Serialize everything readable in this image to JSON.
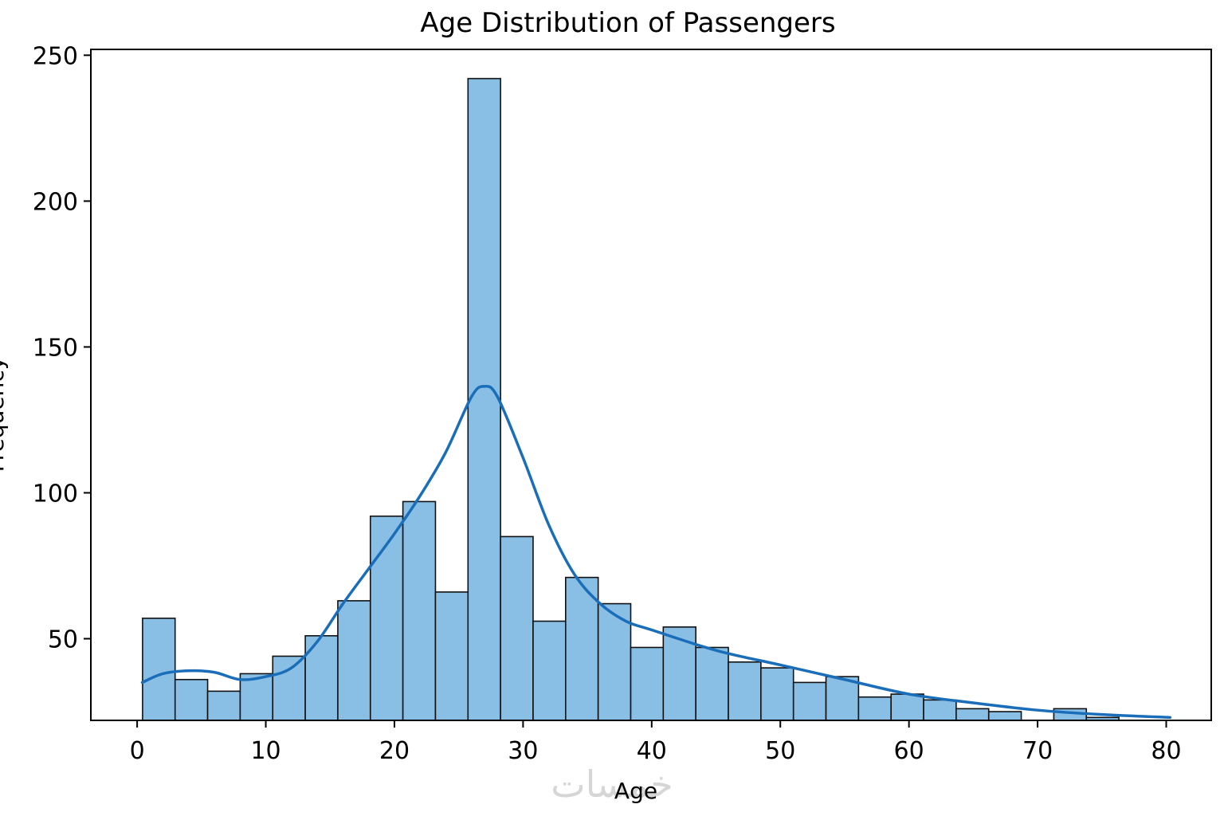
{
  "chart_data": {
    "type": "bar",
    "title": "Age Distribution of Passengers",
    "xlabel": "Age",
    "ylabel": "Frequency",
    "xlim": [
      -3.6,
      83.5
    ],
    "ylim": [
      22,
      252
    ],
    "xticks": [
      0,
      10,
      20,
      30,
      40,
      50,
      60,
      70,
      80
    ],
    "yticks": [
      50,
      100,
      150,
      200,
      250
    ],
    "bin_edges": [
      0.42,
      2.95,
      5.48,
      8.01,
      10.54,
      13.07,
      15.6,
      18.13,
      20.66,
      23.19,
      25.72,
      28.25,
      30.78,
      33.31,
      35.84,
      38.37,
      40.9,
      43.43,
      45.96,
      48.49,
      51.02,
      53.55,
      56.08,
      58.61,
      61.14,
      63.67,
      66.2,
      68.73,
      71.26,
      73.79,
      76.32
    ],
    "values": [
      57,
      36,
      32,
      38,
      44,
      51,
      63,
      92,
      97,
      66,
      242,
      85,
      56,
      71,
      62,
      47,
      54,
      47,
      42,
      40,
      35,
      37,
      30,
      31,
      29,
      26,
      25,
      20,
      26,
      23
    ],
    "kde": {
      "x": [
        0.4,
        2,
        4,
        6,
        8,
        10,
        12,
        14,
        16,
        18,
        20,
        22,
        24,
        26,
        27,
        28,
        30,
        32,
        34,
        36,
        38,
        40,
        45,
        50,
        55,
        60,
        65,
        70,
        75,
        80.3
      ],
      "y": [
        35,
        38,
        39,
        38.5,
        36,
        37,
        40,
        49,
        62,
        74,
        86,
        99,
        114,
        133,
        136.5,
        133,
        112,
        89,
        72,
        62,
        56,
        53,
        46,
        41,
        36,
        31,
        28,
        25.5,
        24,
        23
      ]
    },
    "colors": {
      "bar_fill": "#89bfe5",
      "bar_edge": "#111111",
      "kde_line": "#1a6db8"
    }
  },
  "watermark": {
    "text": "خمسات"
  }
}
